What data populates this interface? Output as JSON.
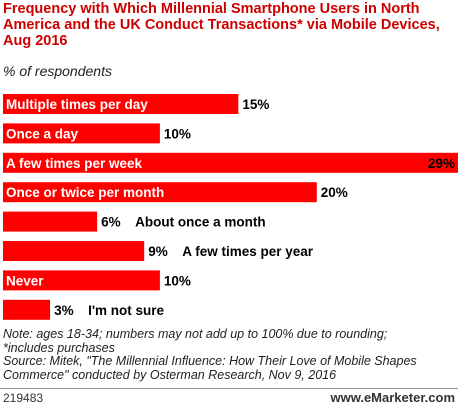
{
  "header": {
    "title": "Frequency with Which Millennial Smartphone Users in North America and the UK Conduct Transactions* via Mobile Devices, Aug 2016",
    "subtitle": "% of respondents"
  },
  "chart_data": {
    "type": "bar",
    "orientation": "horizontal",
    "title": "Frequency with Which Millennial Smartphone Users in North America and the UK Conduct Transactions* via Mobile Devices, Aug 2016",
    "subtitle": "% of respondents",
    "categories": [
      "Multiple times per day",
      "Once a day",
      "A few times per week",
      "Once or twice per month",
      "About once a month",
      "A few times per year",
      "Never",
      "I'm not sure"
    ],
    "values": [
      15,
      10,
      29,
      20,
      6,
      9,
      10,
      3
    ],
    "value_labels": [
      "15%",
      "10%",
      "29%",
      "20%",
      "6%",
      "9%",
      "10%",
      "3%"
    ],
    "bar_color": "#ff0000",
    "xlim": [
      0,
      29
    ],
    "grid": false
  },
  "footer": {
    "note_lines": [
      "Note: ages 18-34; numbers may not add up to 100% due to rounding;",
      "*includes purchases",
      "Source: Mitek, \"The Millennial Influence: How Their Love of Mobile Shapes",
      "Commerce\" conducted by Osterman Research, Nov 9, 2016"
    ],
    "id": "219483",
    "brand": "www.eMarketer.com"
  }
}
